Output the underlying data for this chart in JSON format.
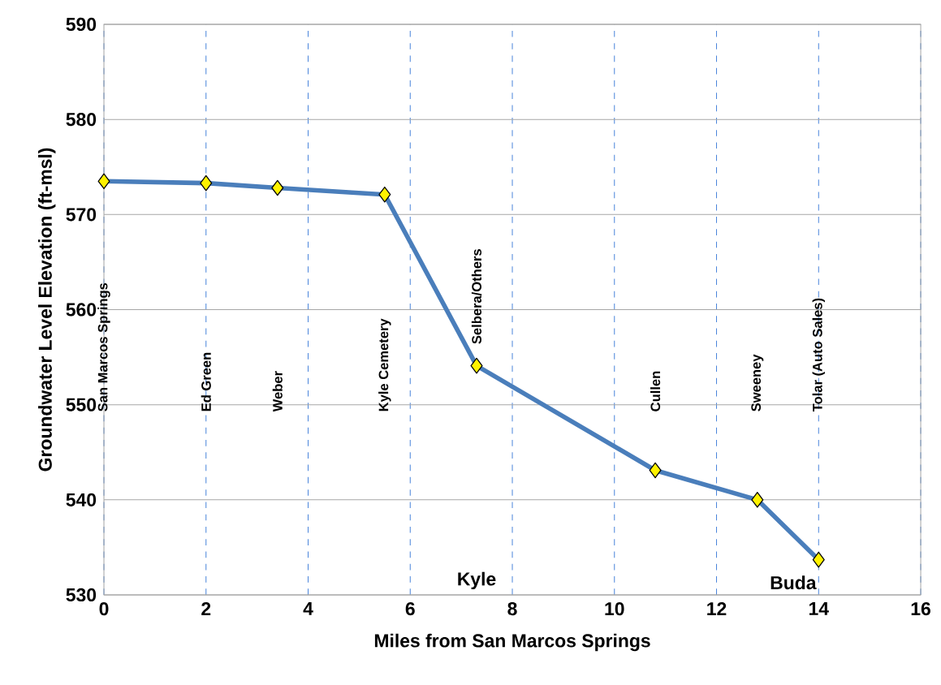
{
  "chart_data": {
    "type": "line",
    "xlabel": "Miles from San Marcos Springs",
    "ylabel": "Groundwater Level Elevation (ft-msl)",
    "x": [
      0,
      2,
      3.4,
      5.5,
      7.3,
      10.8,
      12.8,
      14
    ],
    "series": [
      {
        "color": "#4a7ebb",
        "values": [
          573.5,
          573.3,
          572.8,
          572.1,
          554.1,
          543.1,
          540.0,
          533.7
        ]
      }
    ],
    "xlim": [
      0,
      16
    ],
    "xticks": [
      0,
      2,
      4,
      6,
      8,
      10,
      12,
      14,
      16
    ],
    "ylim": [
      530,
      590
    ],
    "yticks": [
      530,
      540,
      550,
      560,
      570,
      580,
      590
    ],
    "grid": true,
    "marker": "diamond",
    "line_style": "solid",
    "annotations": [
      "San Marcos Springs",
      "Ed Green",
      "Weber",
      "Kyle Cemetery",
      "Selbera/Others",
      "Cullen",
      "Sweeney",
      "Tolar (Auto Sales)",
      "Kyle",
      "Buda"
    ]
  }
}
